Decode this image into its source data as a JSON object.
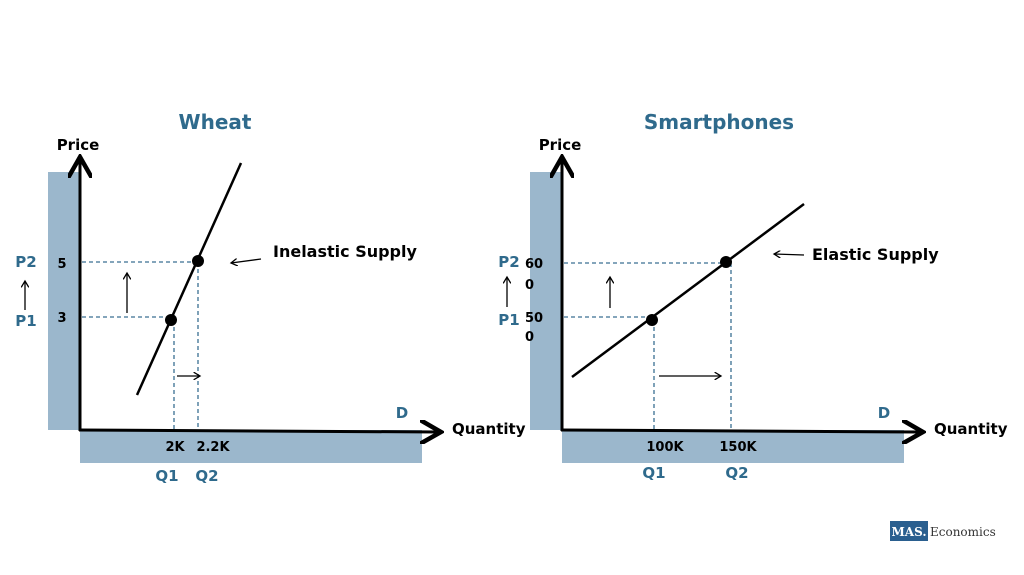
{
  "colors": {
    "title": "#2f6a8c",
    "band": "#9bb7cc",
    "guide": "#3a6f92",
    "curve": "#000000"
  },
  "left": {
    "title": "Wheat",
    "y_axis_label": "Price",
    "x_axis_label": "Quantity",
    "curve_label": "Inelastic Supply",
    "demand_label": "D",
    "p2": "P2",
    "p1": "P1",
    "p2_value": "5",
    "p1_value": "3",
    "q1": "Q1",
    "q2": "Q2",
    "q1_value": "2K",
    "q2_value": "2.2K"
  },
  "right": {
    "title": "Smartphones",
    "y_axis_label": "Price",
    "x_axis_label": "Quantity",
    "curve_label": "Elastic Supply",
    "demand_label": "D",
    "p2": "P2",
    "p1": "P1",
    "p2_value_line1": "60",
    "p2_value_line2": "0",
    "p1_value_line1": "50",
    "p1_value_line2": "0",
    "q1": "Q1",
    "q2": "Q2",
    "q1_value": "100K",
    "q2_value": "150K"
  },
  "logo": {
    "brand": "MAS.",
    "text": "Economics"
  }
}
